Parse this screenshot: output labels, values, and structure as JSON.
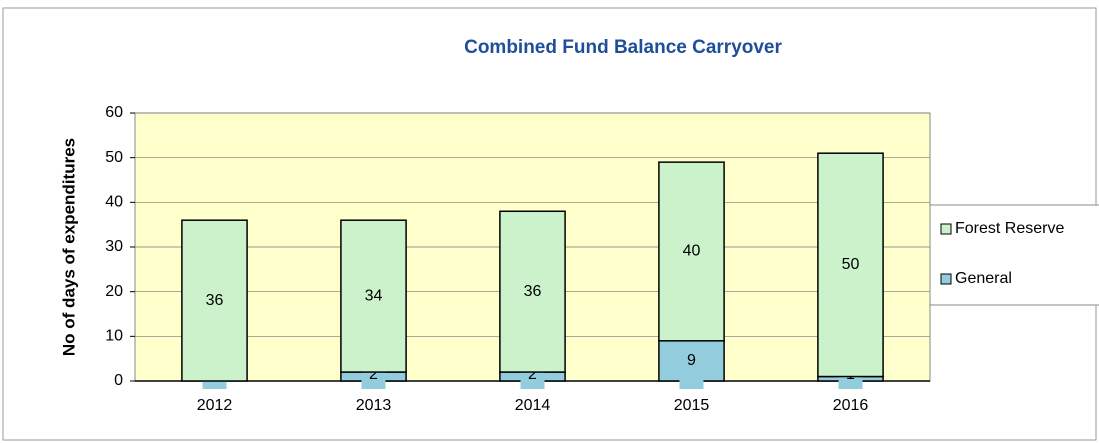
{
  "chart_data": {
    "type": "bar",
    "stacked": true,
    "title": "Combined Fund Balance Carryover",
    "y_label": "No of days of expenditures",
    "categories": [
      "2012",
      "2013",
      "2014",
      "2015",
      "2016"
    ],
    "series": [
      {
        "name": "General",
        "color": "#93cddd",
        "values": [
          0,
          2,
          2,
          9,
          1
        ]
      },
      {
        "name": "Forest Reserve",
        "color": "#ccf2cc",
        "values": [
          36,
          34,
          36,
          40,
          50
        ]
      }
    ],
    "ylim": [
      0,
      60
    ],
    "yticks": [
      0,
      10,
      20,
      30,
      40,
      50,
      60
    ],
    "grid": true,
    "legend": "right",
    "plot_background": "#ffffcc"
  }
}
